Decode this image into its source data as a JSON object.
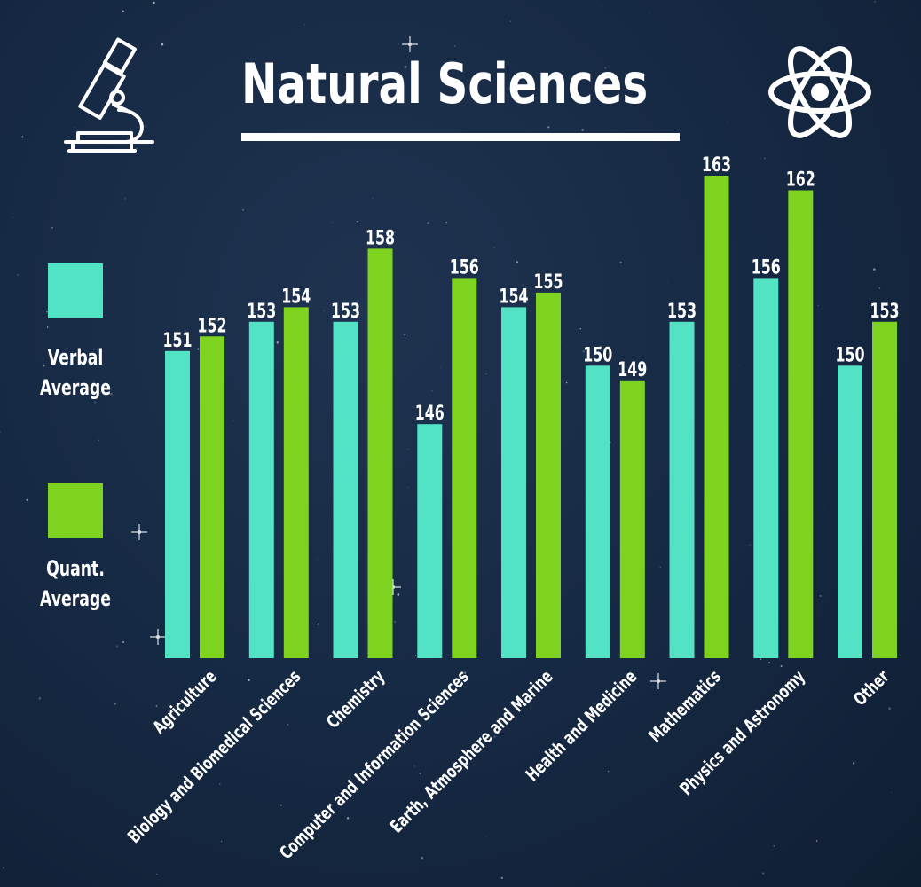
{
  "header": {
    "title": "Natural Sciences",
    "left_icon": "microscope-icon",
    "right_icon": "atom-icon"
  },
  "legend": {
    "items": [
      {
        "label_line1": "Verbal",
        "label_line2": "Average",
        "color": "#52e3c4"
      },
      {
        "label_line1": "Quant.",
        "label_line2": "Average",
        "color": "#7ed321"
      }
    ]
  },
  "colors": {
    "background": "#172a45",
    "verbal": "#52e3c4",
    "quant": "#7ed321",
    "text": "#ffffff"
  },
  "chart_data": {
    "type": "bar",
    "title": "Natural Sciences",
    "categories": [
      "Agriculture",
      "Biology and Biomedical Sciences",
      "Chemistry",
      "Computer and Information Sciences",
      "Earth, Atmosphere and Marine",
      "Health and Medicine",
      "Mathematics",
      "Physics and Astronomy",
      "Other"
    ],
    "series": [
      {
        "name": "Verbal Average",
        "values": [
          151,
          153,
          153,
          146,
          154,
          150,
          153,
          156,
          150
        ]
      },
      {
        "name": "Quant. Average",
        "values": [
          152,
          154,
          158,
          156,
          155,
          149,
          163,
          162,
          153
        ]
      }
    ],
    "ylim": [
      130,
      163
    ],
    "grid": false,
    "legend_position": "left"
  }
}
